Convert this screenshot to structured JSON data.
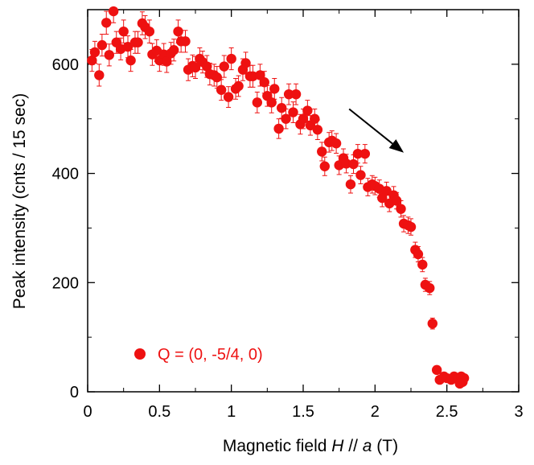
{
  "chart_data": {
    "type": "scatter",
    "title": "",
    "xlabel_parts": [
      "Magnetic field ",
      "H",
      " // ",
      "a",
      " (T)"
    ],
    "ylabel": "Peak intensity (cnts / 15 sec)",
    "xlim": [
      0,
      3
    ],
    "ylim": [
      0,
      700
    ],
    "xticks": [
      0,
      0.5,
      1,
      1.5,
      2,
      2.5,
      3
    ],
    "xtick_labels": [
      "0",
      "0.5",
      "1",
      "1.5",
      "2",
      "2.5",
      "3"
    ],
    "yticks": [
      0,
      200,
      400,
      600
    ],
    "ytick_labels": [
      "0",
      "200",
      "400",
      "600"
    ],
    "legend_position": "bottom-left",
    "grid": false,
    "annotation": {
      "type": "arrow",
      "from": [
        1.82,
        518
      ],
      "to": [
        2.2,
        438
      ]
    },
    "series": [
      {
        "name": "Q = (0, -5/4, 0)",
        "color": "#ee1111",
        "points": [
          [
            0.03,
            607,
            20
          ],
          [
            0.05,
            622,
            20
          ],
          [
            0.08,
            580,
            20
          ],
          [
            0.1,
            635,
            20
          ],
          [
            0.13,
            676,
            21
          ],
          [
            0.15,
            617,
            20
          ],
          [
            0.18,
            697,
            21
          ],
          [
            0.2,
            640,
            20
          ],
          [
            0.23,
            628,
            20
          ],
          [
            0.25,
            660,
            21
          ],
          [
            0.28,
            632,
            20
          ],
          [
            0.3,
            607,
            20
          ],
          [
            0.33,
            640,
            20
          ],
          [
            0.35,
            640,
            20
          ],
          [
            0.38,
            675,
            21
          ],
          [
            0.4,
            668,
            21
          ],
          [
            0.43,
            660,
            21
          ],
          [
            0.45,
            618,
            20
          ],
          [
            0.48,
            625,
            20
          ],
          [
            0.5,
            607,
            20
          ],
          [
            0.53,
            618,
            20
          ],
          [
            0.55,
            605,
            20
          ],
          [
            0.58,
            620,
            20
          ],
          [
            0.6,
            626,
            20
          ],
          [
            0.63,
            660,
            21
          ],
          [
            0.65,
            642,
            20
          ],
          [
            0.68,
            642,
            20
          ],
          [
            0.7,
            590,
            20
          ],
          [
            0.73,
            597,
            20
          ],
          [
            0.75,
            594,
            20
          ],
          [
            0.78,
            610,
            20
          ],
          [
            0.8,
            604,
            20
          ],
          [
            0.83,
            596,
            20
          ],
          [
            0.85,
            582,
            20
          ],
          [
            0.88,
            580,
            20
          ],
          [
            0.9,
            576,
            20
          ],
          [
            0.93,
            553,
            19
          ],
          [
            0.95,
            596,
            20
          ],
          [
            0.98,
            540,
            19
          ],
          [
            1.0,
            610,
            20
          ],
          [
            1.03,
            555,
            19
          ],
          [
            1.05,
            560,
            19
          ],
          [
            1.08,
            590,
            20
          ],
          [
            1.1,
            602,
            20
          ],
          [
            1.13,
            578,
            20
          ],
          [
            1.15,
            578,
            20
          ],
          [
            1.18,
            530,
            19
          ],
          [
            1.2,
            580,
            20
          ],
          [
            1.23,
            567,
            20
          ],
          [
            1.25,
            542,
            19
          ],
          [
            1.28,
            530,
            19
          ],
          [
            1.3,
            555,
            19
          ],
          [
            1.33,
            482,
            18
          ],
          [
            1.35,
            520,
            19
          ],
          [
            1.38,
            500,
            18
          ],
          [
            1.4,
            545,
            19
          ],
          [
            1.43,
            512,
            19
          ],
          [
            1.45,
            545,
            19
          ],
          [
            1.48,
            490,
            18
          ],
          [
            1.5,
            500,
            18
          ],
          [
            1.53,
            515,
            19
          ],
          [
            1.55,
            488,
            18
          ],
          [
            1.58,
            500,
            18
          ],
          [
            1.6,
            480,
            18
          ],
          [
            1.63,
            440,
            17
          ],
          [
            1.65,
            413,
            17
          ],
          [
            1.68,
            457,
            18
          ],
          [
            1.7,
            460,
            18
          ],
          [
            1.73,
            455,
            18
          ],
          [
            1.75,
            415,
            17
          ],
          [
            1.78,
            428,
            17
          ],
          [
            1.8,
            418,
            17
          ],
          [
            1.83,
            380,
            16
          ],
          [
            1.85,
            417,
            17
          ],
          [
            1.88,
            436,
            17
          ],
          [
            1.9,
            397,
            16
          ],
          [
            1.93,
            436,
            17
          ],
          [
            1.95,
            375,
            16
          ],
          [
            1.98,
            380,
            16
          ],
          [
            2.0,
            377,
            16
          ],
          [
            2.03,
            372,
            16
          ],
          [
            2.05,
            355,
            16
          ],
          [
            2.08,
            368,
            16
          ],
          [
            2.1,
            345,
            15
          ],
          [
            2.13,
            360,
            16
          ],
          [
            2.15,
            350,
            15
          ],
          [
            2.18,
            335,
            15
          ],
          [
            2.2,
            308,
            15
          ],
          [
            2.23,
            305,
            15
          ],
          [
            2.25,
            302,
            15
          ],
          [
            2.28,
            260,
            14
          ],
          [
            2.3,
            252,
            14
          ],
          [
            2.33,
            233,
            13
          ],
          [
            2.35,
            196,
            12
          ],
          [
            2.38,
            190,
            12
          ],
          [
            2.4,
            125,
            10
          ],
          [
            2.43,
            40,
            6
          ],
          [
            2.45,
            22,
            5
          ],
          [
            2.48,
            28,
            5
          ],
          [
            2.5,
            25,
            5
          ],
          [
            2.53,
            22,
            5
          ],
          [
            2.55,
            28,
            5
          ],
          [
            2.58,
            24,
            5
          ],
          [
            2.6,
            28,
            5
          ],
          [
            2.61,
            18,
            4
          ],
          [
            2.62,
            25,
            5
          ],
          [
            2.59,
            15,
            4
          ]
        ]
      }
    ]
  }
}
